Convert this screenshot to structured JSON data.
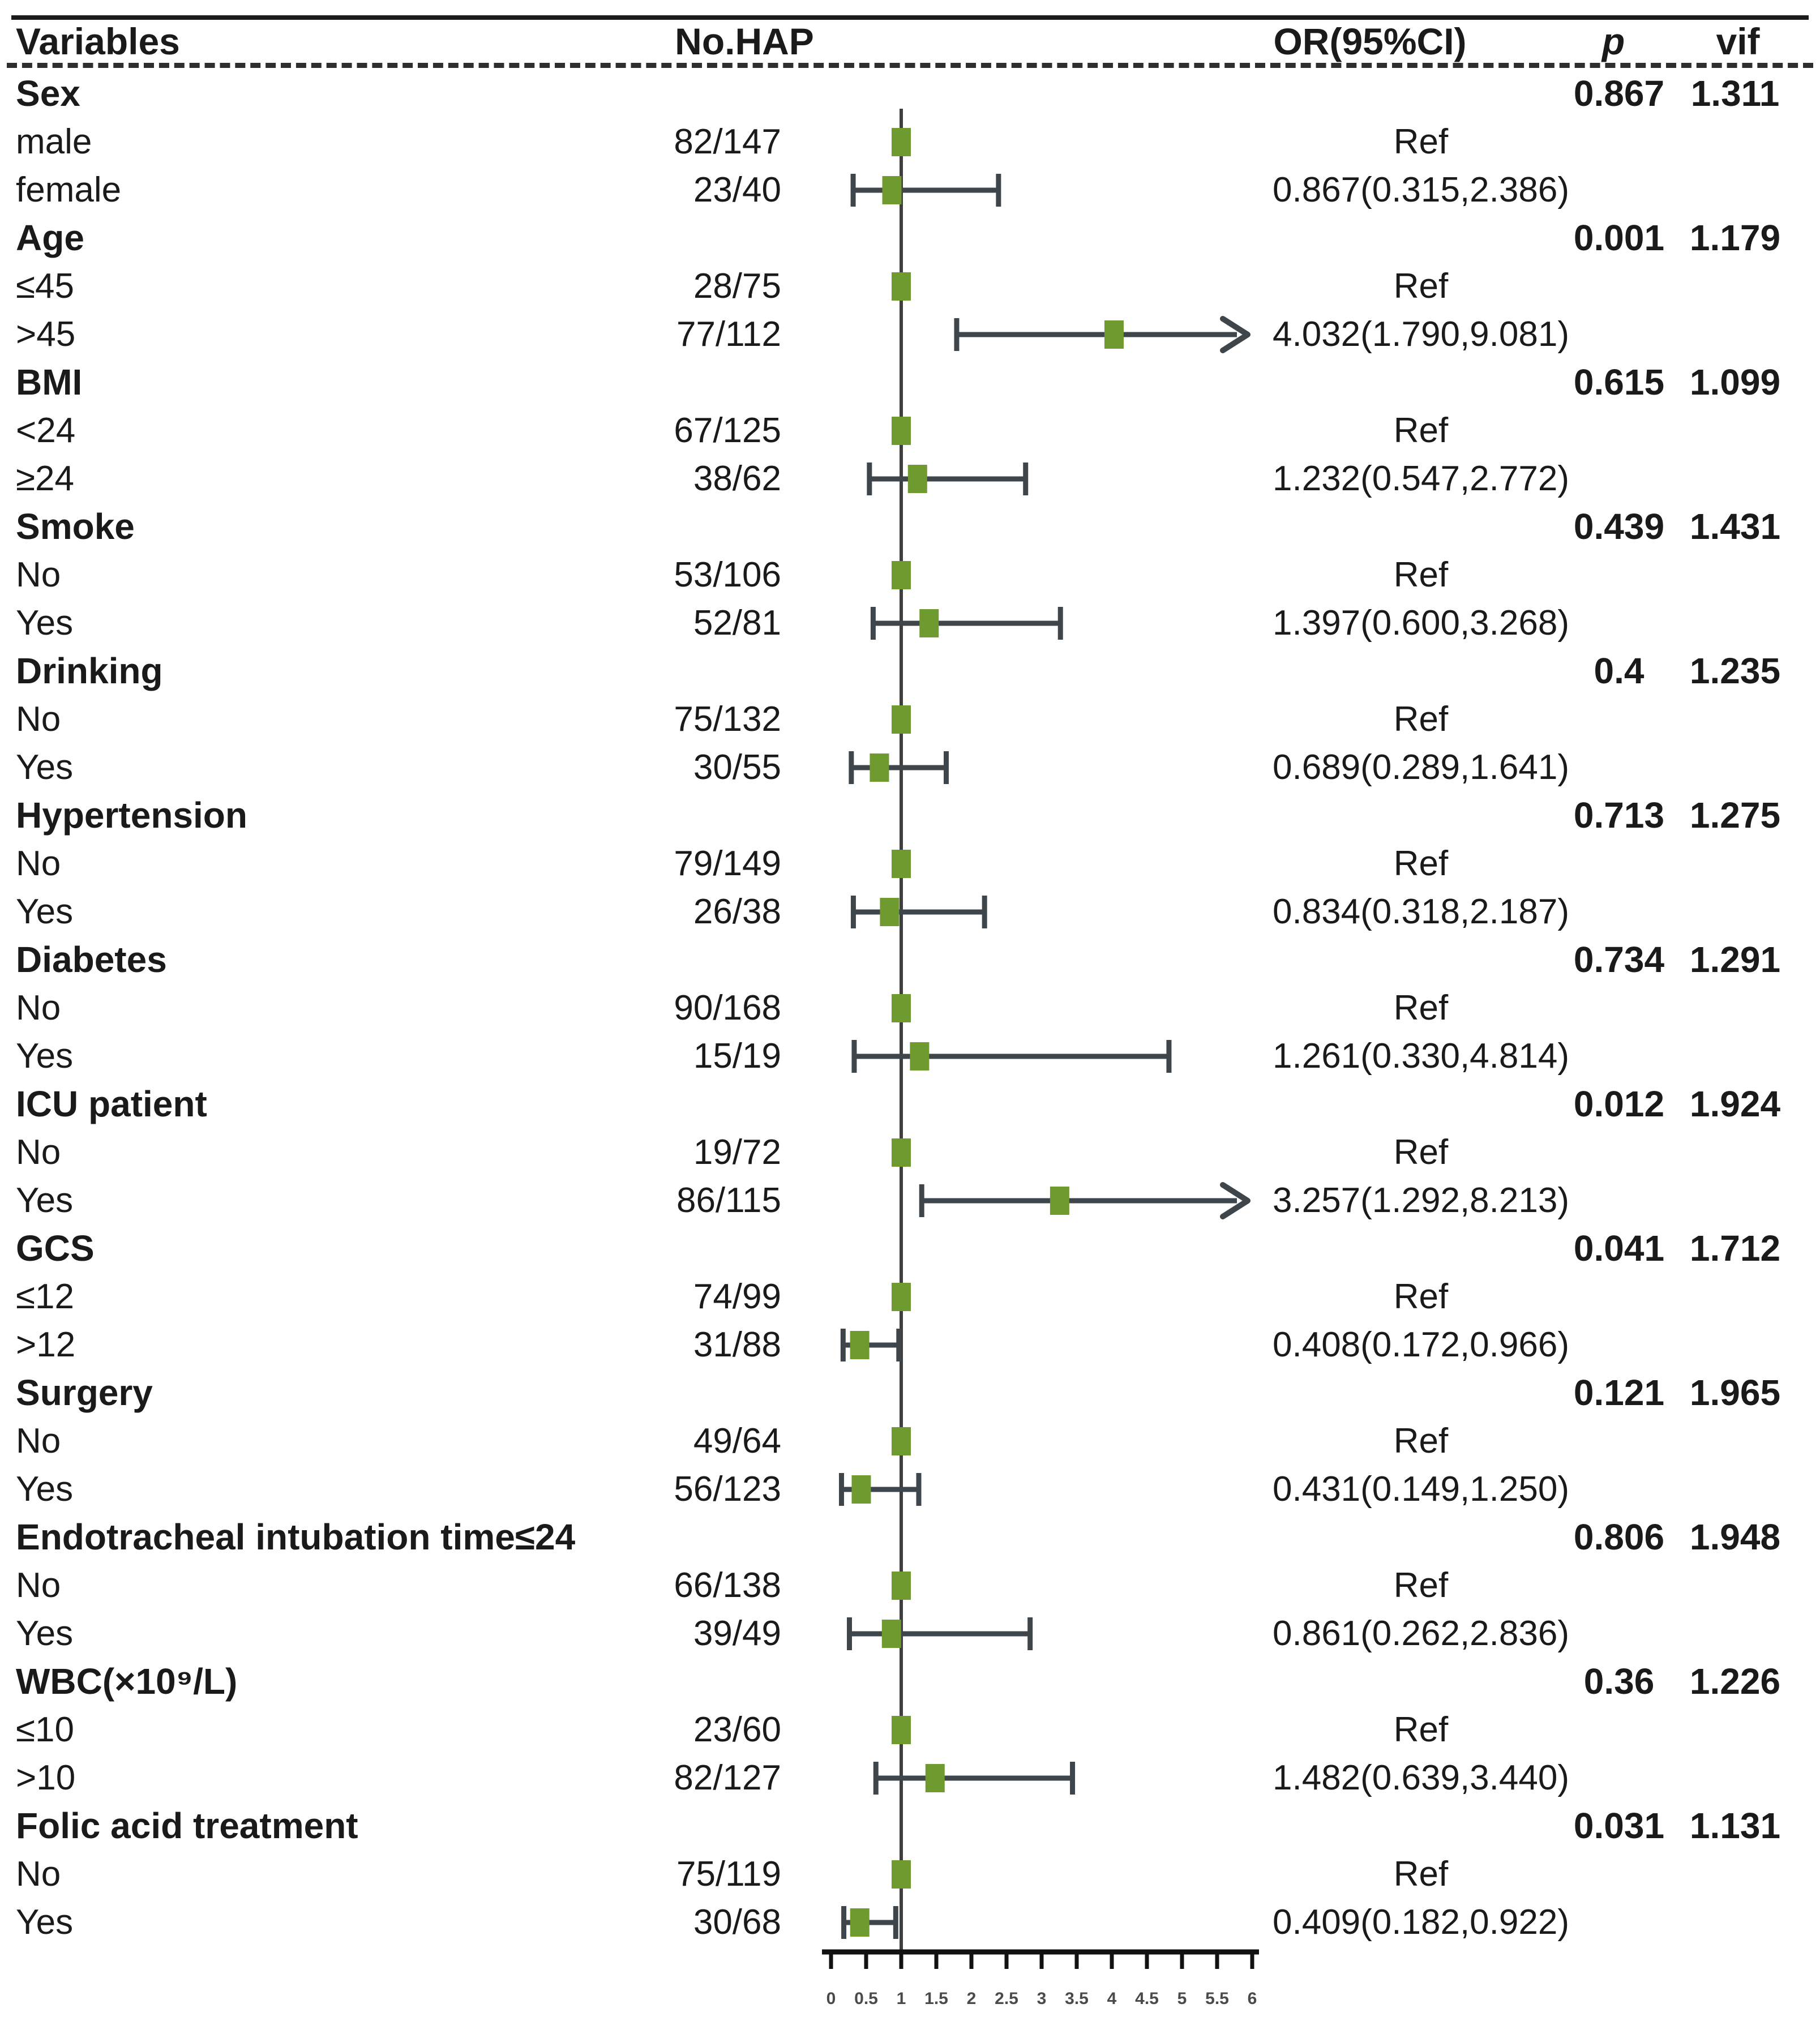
{
  "header": {
    "variables": "Variables",
    "no_hap": "No.HAP",
    "or_ci": "OR(95%CI)",
    "p": "p",
    "vif": "vif"
  },
  "colors": {
    "marker_green": "#6f9a2f",
    "ci_bar": "#3e464c",
    "reference_line": "#3f3f3f",
    "axis": "#111111",
    "tick_label": "#4a4a4a",
    "text": "#1a1a1a"
  },
  "chart_data": {
    "type": "forest",
    "title": "",
    "xlabel": "",
    "axis": {
      "min": 0,
      "max": 6,
      "ref_line": 1,
      "ticks": [
        0,
        0.5,
        1,
        1.5,
        2,
        2.5,
        3,
        3.5,
        4,
        4.5,
        5,
        5.5,
        6
      ],
      "tick_labels": [
        "0",
        "0.5",
        "1",
        "1.5",
        "2",
        "2.5",
        "3",
        "3.5",
        "4",
        "4.5",
        "5",
        "5.5",
        "6"
      ]
    },
    "rows": [
      {
        "kind": "group",
        "label": "Sex",
        "p": "0.867",
        "vif": "1.311"
      },
      {
        "kind": "item",
        "label": "male",
        "no_hap": "82/147",
        "or_text": "Ref",
        "ref": true,
        "or": 1
      },
      {
        "kind": "item",
        "label": "female",
        "no_hap": "23/40",
        "or_text": "0.867(0.315,2.386)",
        "or": 0.867,
        "lo": 0.315,
        "hi": 2.386
      },
      {
        "kind": "group",
        "label": "Age",
        "p": "0.001",
        "vif": "1.179"
      },
      {
        "kind": "item",
        "label": "≤45",
        "no_hap": "28/75",
        "or_text": "Ref",
        "ref": true,
        "or": 1
      },
      {
        "kind": "item",
        "label": ">45",
        "no_hap": "77/112",
        "or_text": "4.032(1.790,9.081)",
        "or": 4.032,
        "lo": 1.79,
        "hi": 9.081
      },
      {
        "kind": "group",
        "label": "BMI",
        "p": "0.615",
        "vif": "1.099"
      },
      {
        "kind": "item",
        "label": "<24",
        "no_hap": "67/125",
        "or_text": "Ref",
        "ref": true,
        "or": 1
      },
      {
        "kind": "item",
        "label": "≥24",
        "no_hap": "38/62",
        "or_text": "1.232(0.547,2.772)",
        "or": 1.232,
        "lo": 0.547,
        "hi": 2.772
      },
      {
        "kind": "group",
        "label": "Smoke",
        "p": "0.439",
        "vif": "1.431"
      },
      {
        "kind": "item",
        "label": "No",
        "no_hap": "53/106",
        "or_text": "Ref",
        "ref": true,
        "or": 1
      },
      {
        "kind": "item",
        "label": "Yes",
        "no_hap": "52/81",
        "or_text": "1.397(0.600,3.268)",
        "or": 1.397,
        "lo": 0.6,
        "hi": 3.268
      },
      {
        "kind": "group",
        "label": "Drinking",
        "p": "0.4",
        "vif": "1.235"
      },
      {
        "kind": "item",
        "label": "No",
        "no_hap": "75/132",
        "or_text": "Ref",
        "ref": true,
        "or": 1
      },
      {
        "kind": "item",
        "label": "Yes",
        "no_hap": "30/55",
        "or_text": "0.689(0.289,1.641)",
        "or": 0.689,
        "lo": 0.289,
        "hi": 1.641
      },
      {
        "kind": "group",
        "label": "Hypertension",
        "p": "0.713",
        "vif": "1.275"
      },
      {
        "kind": "item",
        "label": "No",
        "no_hap": "79/149",
        "or_text": "Ref",
        "ref": true,
        "or": 1
      },
      {
        "kind": "item",
        "label": "Yes",
        "no_hap": "26/38",
        "or_text": "0.834(0.318,2.187)",
        "or": 0.834,
        "lo": 0.318,
        "hi": 2.187
      },
      {
        "kind": "group",
        "label": "Diabetes",
        "p": "0.734",
        "vif": "1.291"
      },
      {
        "kind": "item",
        "label": "No",
        "no_hap": "90/168",
        "or_text": "Ref",
        "ref": true,
        "or": 1
      },
      {
        "kind": "item",
        "label": "Yes",
        "no_hap": "15/19",
        "or_text": "1.261(0.330,4.814)",
        "or": 1.261,
        "lo": 0.33,
        "hi": 4.814
      },
      {
        "kind": "group",
        "label": "ICU patient",
        "p": "0.012",
        "vif": "1.924"
      },
      {
        "kind": "item",
        "label": "No",
        "no_hap": "19/72",
        "or_text": "Ref",
        "ref": true,
        "or": 1
      },
      {
        "kind": "item",
        "label": "Yes",
        "no_hap": "86/115",
        "or_text": "3.257(1.292,8.213)",
        "or": 3.257,
        "lo": 1.292,
        "hi": 8.213
      },
      {
        "kind": "group",
        "label": "GCS",
        "p": "0.041",
        "vif": "1.712"
      },
      {
        "kind": "item",
        "label": "≤12",
        "no_hap": "74/99",
        "or_text": "Ref",
        "ref": true,
        "or": 1
      },
      {
        "kind": "item",
        "label": ">12",
        "no_hap": "31/88",
        "or_text": "0.408(0.172,0.966)",
        "or": 0.408,
        "lo": 0.172,
        "hi": 0.966
      },
      {
        "kind": "group",
        "label": "Surgery",
        "p": "0.121",
        "vif": "1.965"
      },
      {
        "kind": "item",
        "label": "No",
        "no_hap": "49/64",
        "or_text": "Ref",
        "ref": true,
        "or": 1
      },
      {
        "kind": "item",
        "label": "Yes",
        "no_hap": "56/123",
        "or_text": "0.431(0.149,1.250)",
        "or": 0.431,
        "lo": 0.149,
        "hi": 1.25
      },
      {
        "kind": "group",
        "label": "Endotracheal intubation time≤24",
        "p": "0.806",
        "vif": "1.948"
      },
      {
        "kind": "item",
        "label": "No",
        "no_hap": "66/138",
        "or_text": "Ref",
        "ref": true,
        "or": 1
      },
      {
        "kind": "item",
        "label": "Yes",
        "no_hap": "39/49",
        "or_text": "0.861(0.262,2.836)",
        "or": 0.861,
        "lo": 0.262,
        "hi": 2.836
      },
      {
        "kind": "group",
        "label": "WBC(×10⁹/L)",
        "p": "0.36",
        "vif": "1.226"
      },
      {
        "kind": "item",
        "label": "≤10",
        "no_hap": "23/60",
        "or_text": "Ref",
        "ref": true,
        "or": 1
      },
      {
        "kind": "item",
        "label": ">10",
        "no_hap": "82/127",
        "or_text": "1.482(0.639,3.440)",
        "or": 1.482,
        "lo": 0.639,
        "hi": 3.44
      },
      {
        "kind": "group",
        "label": "Folic acid treatment",
        "p": "0.031",
        "vif": "1.131"
      },
      {
        "kind": "item",
        "label": "No",
        "no_hap": "75/119",
        "or_text": "Ref",
        "ref": true,
        "or": 1
      },
      {
        "kind": "item",
        "label": "Yes",
        "no_hap": "30/68",
        "or_text": "0.409(0.182,0.922)",
        "or": 0.409,
        "lo": 0.182,
        "hi": 0.922
      }
    ]
  }
}
